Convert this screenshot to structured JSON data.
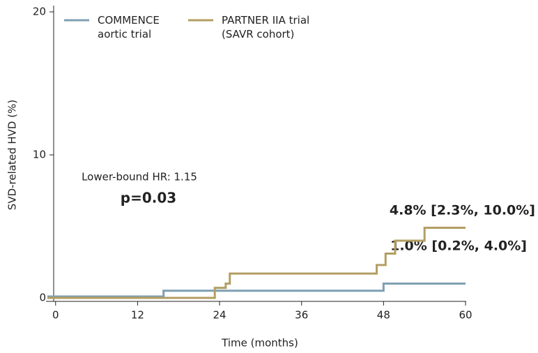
{
  "chart_data": {
    "type": "line",
    "step": "post",
    "xlabel": "Time (months)",
    "ylabel": "SVD-related HVD (%)",
    "xlim": [
      -1.2,
      60
    ],
    "xticks": [
      0,
      12,
      24,
      36,
      48,
      60
    ],
    "ylim": [
      0,
      20
    ],
    "yticks": [
      0,
      10,
      20
    ],
    "legend": "top-left",
    "series": [
      {
        "name": "COMMENCE\naortic trial",
        "color": "#7f9fb2",
        "x": [
          -1.2,
          15.8,
          48,
          60
        ],
        "values": [
          0.1,
          0.5,
          1.0,
          1.0
        ]
      },
      {
        "name": "PARTNER IIA trial\n(SAVR cohort)",
        "color": "#b39e62",
        "x": [
          -1.2,
          23.3,
          24.9,
          25.5,
          47,
          48.3,
          49.7,
          54,
          60
        ],
        "values": [
          0,
          0.7,
          1.0,
          1.7,
          2.3,
          3.1,
          4.0,
          4.9,
          4.9
        ]
      }
    ],
    "annotations": [
      "Lower-bound HR: 1.15",
      "p=0.03",
      "4.8% [2.3%, 10.0%]",
      "1.0% [0.2%, 4.0%]"
    ]
  }
}
